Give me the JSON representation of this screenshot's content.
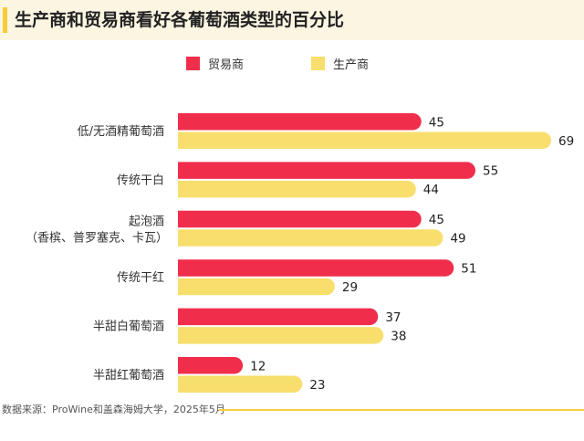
{
  "title": "生产商和贸易商看好各葡萄酒类型的百分比",
  "source": "数据来源：ProWine和盖森海姆大学，2025年5月",
  "colors": {
    "accent": "#f5cd3a",
    "header_bg": "#fbf5e2"
  },
  "chart_data": {
    "type": "bar",
    "orientation": "horizontal",
    "categories": [
      [
        "低/无酒精葡萄酒"
      ],
      [
        "传统干白"
      ],
      [
        "起泡酒",
        "（香槟、普罗塞克、卡瓦）"
      ],
      [
        "传统干红"
      ],
      [
        "半甜白葡萄酒"
      ],
      [
        "半甜红葡萄酒"
      ]
    ],
    "series": [
      {
        "name": "贸易商",
        "color": "#f02e4c",
        "values": [
          45,
          55,
          45,
          51,
          37,
          12
        ]
      },
      {
        "name": "生产商",
        "color": "#f8df6d",
        "values": [
          69,
          44,
          49,
          29,
          38,
          23
        ]
      }
    ],
    "xlim": [
      0,
      69
    ],
    "grid": false,
    "legend": "top"
  }
}
